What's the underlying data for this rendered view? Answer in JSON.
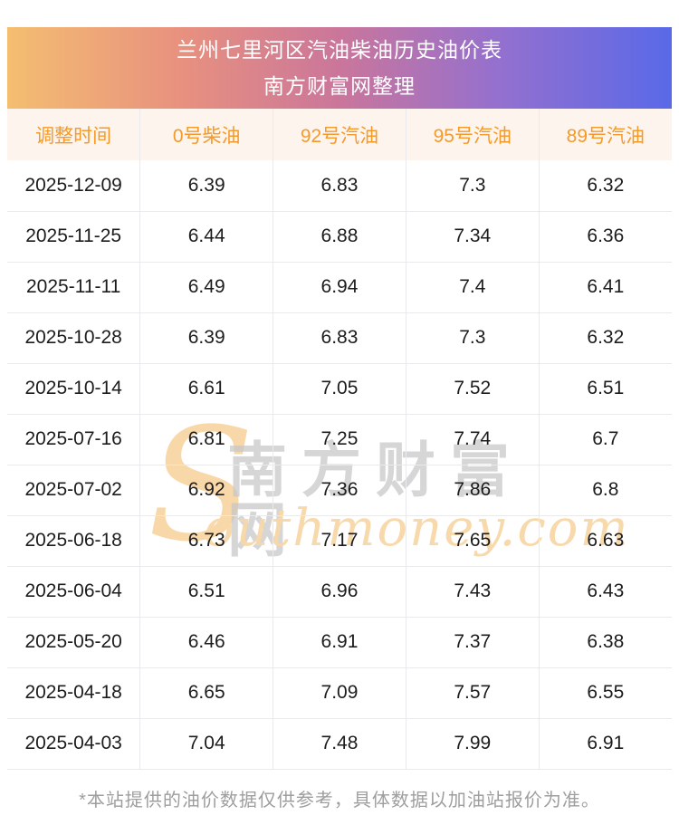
{
  "chart_data": {
    "type": "table",
    "title": "兰州七里河区汽油柴油历史油价表",
    "subtitle": "南方财富网整理",
    "columns": [
      "调整时间",
      "0号柴油",
      "92号汽油",
      "95号汽油",
      "89号汽油"
    ],
    "rows": [
      [
        "2025-12-09",
        "6.39",
        "6.83",
        "7.3",
        "6.32"
      ],
      [
        "2025-11-25",
        "6.44",
        "6.88",
        "7.34",
        "6.36"
      ],
      [
        "2025-11-11",
        "6.49",
        "6.94",
        "7.4",
        "6.41"
      ],
      [
        "2025-10-28",
        "6.39",
        "6.83",
        "7.3",
        "6.32"
      ],
      [
        "2025-10-14",
        "6.61",
        "7.05",
        "7.52",
        "6.51"
      ],
      [
        "2025-07-16",
        "6.81",
        "7.25",
        "7.74",
        "6.7"
      ],
      [
        "2025-07-02",
        "6.92",
        "7.36",
        "7.86",
        "6.8"
      ],
      [
        "2025-06-18",
        "6.73",
        "7.17",
        "7.65",
        "6.63"
      ],
      [
        "2025-06-04",
        "6.51",
        "6.96",
        "7.43",
        "6.43"
      ],
      [
        "2025-05-20",
        "6.46",
        "6.91",
        "7.37",
        "6.38"
      ],
      [
        "2025-04-18",
        "6.65",
        "7.09",
        "7.57",
        "6.55"
      ],
      [
        "2025-04-03",
        "7.04",
        "7.48",
        "7.99",
        "6.91"
      ]
    ]
  },
  "watermark": {
    "initial": "S",
    "cn_text": "南方财富网",
    "en_text": "outhmoney.com"
  },
  "footer": {
    "note": "*本站提供的油价数据仅供参考，具体数据以加油站报价为准。"
  },
  "colors": {
    "g1": "#f4be71",
    "g2": "#e8917f",
    "g3": "#ca769b",
    "g4": "#9470cf",
    "g5": "#5969e8",
    "header_row_bg": "#fdf4ed",
    "accent_orange": "#f59a28",
    "divider": "#e8eaee",
    "cell_text": "#1c1c1c",
    "footer_text": "#9e9e9e",
    "wm_gray": "#c7c7c7",
    "wm_peach": "#f8d8a8"
  }
}
